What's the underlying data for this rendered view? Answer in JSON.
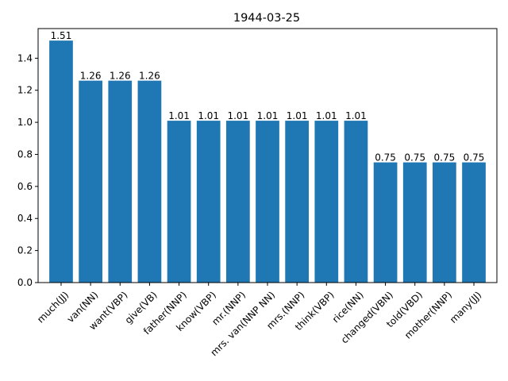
{
  "chart_data": {
    "type": "bar",
    "title": "1944-03-25",
    "xlabel": "",
    "ylabel": "",
    "categories": [
      "much(JJ)",
      "van(NN)",
      "want(VBP)",
      "give(VB)",
      "father(NNP)",
      "know(VBP)",
      "mr.(NNP)",
      "mrs. van(NNP NN)",
      "mrs.(NNP)",
      "think(VBP)",
      "rice(NN)",
      "changed(VBN)",
      "told(VBD)",
      "mother(NNP)",
      "many(JJ)"
    ],
    "values": [
      1.51,
      1.26,
      1.26,
      1.26,
      1.01,
      1.01,
      1.01,
      1.01,
      1.01,
      1.01,
      1.01,
      0.75,
      0.75,
      0.75,
      0.75
    ],
    "value_labels": [
      "1.51",
      "1.26",
      "1.26",
      "1.26",
      "1.01",
      "1.01",
      "1.01",
      "1.01",
      "1.01",
      "1.01",
      "1.01",
      "0.75",
      "0.75",
      "0.75",
      "0.75"
    ],
    "ylim": [
      0,
      1.585
    ],
    "yticks": [
      0.0,
      0.2,
      0.4,
      0.6,
      0.8,
      1.0,
      1.2,
      1.4
    ],
    "ytick_labels": [
      "0.0",
      "0.2",
      "0.4",
      "0.6",
      "0.8",
      "1.0",
      "1.2",
      "1.4"
    ],
    "grid": false,
    "bar_color": "#1f77b4"
  }
}
